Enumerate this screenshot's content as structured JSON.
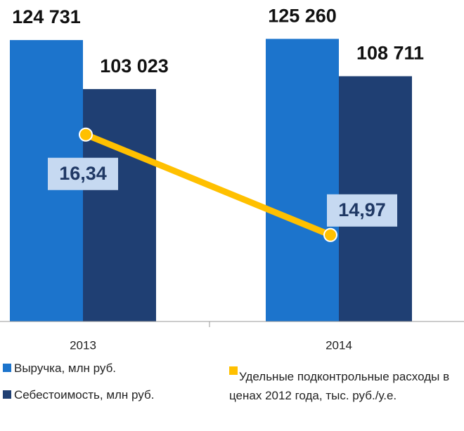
{
  "chart_data": {
    "type": "bar_line",
    "categories": [
      "2013",
      "2014"
    ],
    "series": [
      {
        "name": "Выручка, млн руб.",
        "color": "#1c74cc",
        "type": "bar",
        "values": [
          124731,
          125260
        ],
        "value_labels": [
          "124 731",
          "125 260"
        ]
      },
      {
        "name": "Себестоимость, млн руб.",
        "color": "#1f3f73",
        "type": "bar",
        "values": [
          103023,
          108711
        ],
        "value_labels": [
          "103 023",
          "108 711"
        ]
      },
      {
        "name": "Удельные подконтрольные расходы в ценах 2012 года, тыс. руб./у.е.",
        "color": "#ffc000",
        "type": "line",
        "axis": "y2",
        "values": [
          16.34,
          14.97
        ],
        "value_labels": [
          "16,34",
          "14,97"
        ]
      }
    ],
    "ylim": [
      0,
      140000
    ],
    "y2lim": [
      13.79,
      18.1
    ]
  }
}
